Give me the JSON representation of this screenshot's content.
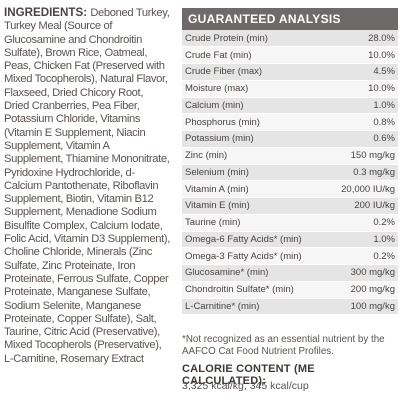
{
  "ingredients": {
    "heading": "INGREDIENTS:",
    "text": "Deboned Turkey, Turkey Meal (Source of Glucosamine and Chondroitin Sulfate), Brown Rice, Oatmeal, Peas, Chicken Fat (Preserved with Mixed Tocopherols), Natural Flavor, Flaxseed, Dried Chicory Root, Dried Cranberries, Pea Fiber, Potassium Chloride, Vitamins (Vitamin E Supplement, Niacin Supplement, Vitamin A Supplement, Thiamine Mononitrate, Pyridoxine Hydrochloride, d-Calcium Pantothenate, Riboflavin Supplement, Biotin, Vitamin B12 Supplement, Menadione Sodium Bisulfite Complex, Calcium Iodate, Folic Acid, Vitamin D3 Supplement), Choline Chloride, Minerals (Zinc Sulfate, Zinc Proteinate, Iron Proteinate, Ferrous Sulfate, Copper Proteinate, Manganese Sulfate, Sodium Selenite, Manganese Proteinate, Copper Sulfate), Salt, Taurine, Citric Acid (Preservative), Mixed Tocopherols (Preservative), L-Carnitine, Rosemary Extract"
  },
  "guaranteed_analysis": {
    "title": "GUARANTEED ANALYSIS",
    "rows": [
      {
        "name": "Crude Protein (min)",
        "value": "28.0%"
      },
      {
        "name": "Crude Fat (min)",
        "value": "10.0%"
      },
      {
        "name": "Crude Fiber (max)",
        "value": "4.5%"
      },
      {
        "name": "Moisture (max)",
        "value": "10.0%"
      },
      {
        "name": "Calcium (min)",
        "value": "1.0%"
      },
      {
        "name": "Phosphorus (min)",
        "value": "0.8%"
      },
      {
        "name": "Potassium (min)",
        "value": "0.6%"
      },
      {
        "name": "Zinc (min)",
        "value": "150 mg/kg"
      },
      {
        "name": "Selenium (min)",
        "value": "0.3 mg/kg"
      },
      {
        "name": "Vitamin A (min)",
        "value": "20,000 IU/kg"
      },
      {
        "name": "Vitamin E (min)",
        "value": "200 IU/kg"
      },
      {
        "name": "Taurine (min)",
        "value": "0.2%"
      },
      {
        "name": "Omega-6 Fatty Acids* (min)",
        "value": "1.0%"
      },
      {
        "name": "Omega-3 Fatty Acids* (min)",
        "value": "0.2%"
      },
      {
        "name": "Glucosamine* (min)",
        "value": "300 mg/kg"
      },
      {
        "name": "Chondroitin Sulfate* (min)",
        "value": "200 mg/kg"
      },
      {
        "name": "L-Carnitine* (min)",
        "value": "100 mg/kg"
      }
    ],
    "footnote": "*Not recognized as an essential nutrient by the AAFCO Cat Food Nutrient Profiles."
  },
  "calorie_content": {
    "title": "CALORIE CONTENT (ME CALCULATED):",
    "value": "3,325 kcal/kg, 345 kcal/cup"
  }
}
